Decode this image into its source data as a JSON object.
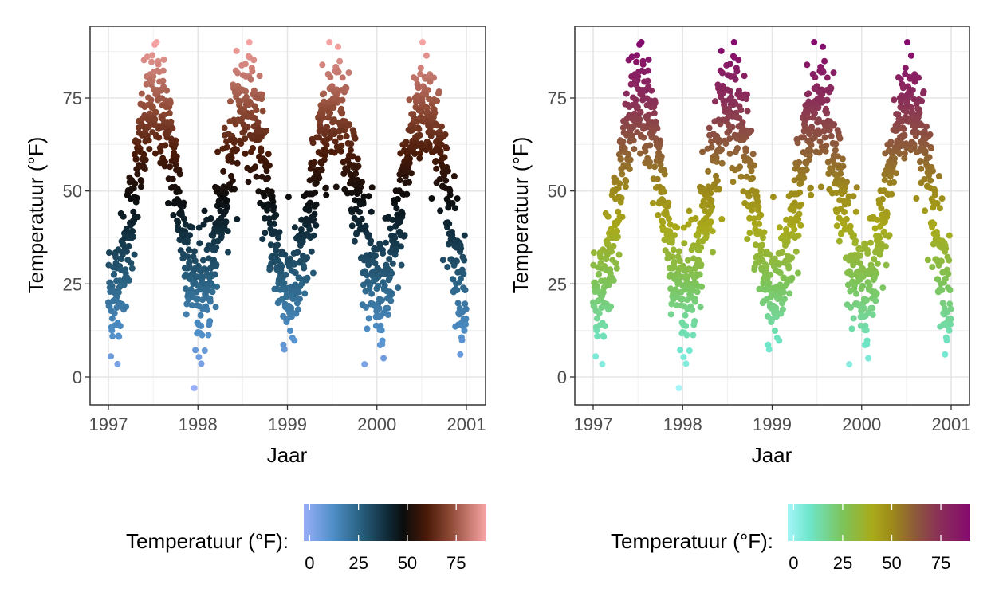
{
  "chart_data": [
    {
      "type": "scatter",
      "panel": "left",
      "xlabel": "Jaar",
      "ylabel": "Temperatuur (°F)",
      "xlim": [
        1996.9,
        2001.2
      ],
      "ylim": [
        -7,
        95
      ],
      "x_ticks": [
        1997,
        1998,
        1999,
        2000,
        2001
      ],
      "x_tick_labels": [
        "1997",
        "1998",
        "1999",
        "2000",
        "2001"
      ],
      "y_ticks": [
        0,
        25,
        50,
        75
      ],
      "y_tick_labels": [
        "0",
        "25",
        "50",
        "75"
      ],
      "grid": true,
      "color_scale": {
        "stops": [
          {
            "value": -3,
            "color": "#98aef8"
          },
          {
            "value": 12,
            "color": "#4f8fc8"
          },
          {
            "value": 25,
            "color": "#2b6485"
          },
          {
            "value": 40,
            "color": "#0f2a38"
          },
          {
            "value": 48,
            "color": "#0b0c0c"
          },
          {
            "value": 60,
            "color": "#4a1a08"
          },
          {
            "value": 72,
            "color": "#8e4a35"
          },
          {
            "value": 90,
            "color": "#f7a3a3"
          }
        ]
      },
      "legend": {
        "title": "Temperatuur (°F):",
        "position": "bottom",
        "range": [
          -3,
          90
        ],
        "ticks": [
          0,
          25,
          50,
          75
        ],
        "tick_labels": [
          "0",
          "25",
          "50",
          "75"
        ]
      }
    },
    {
      "type": "scatter",
      "panel": "right",
      "xlabel": "Jaar",
      "ylabel": "Temperatuur (°F)",
      "xlim": [
        1996.9,
        2001.2
      ],
      "ylim": [
        -7,
        95
      ],
      "x_ticks": [
        1997,
        1998,
        1999,
        2000,
        2001
      ],
      "x_tick_labels": [
        "1997",
        "1998",
        "1999",
        "2000",
        "2001"
      ],
      "y_ticks": [
        0,
        25,
        50,
        75
      ],
      "y_tick_labels": [
        "0",
        "25",
        "50",
        "75"
      ],
      "grid": true,
      "color_scale": {
        "stops": [
          {
            "value": -3,
            "color": "#a4f4f8"
          },
          {
            "value": 8,
            "color": "#6ee6cc"
          },
          {
            "value": 25,
            "color": "#7cc45a"
          },
          {
            "value": 40,
            "color": "#a9aa1a"
          },
          {
            "value": 50,
            "color": "#9d8a1a"
          },
          {
            "value": 62,
            "color": "#8d5a3a"
          },
          {
            "value": 75,
            "color": "#8a2d5a"
          },
          {
            "value": 90,
            "color": "#850a6e"
          }
        ]
      },
      "legend": {
        "title": "Temperatuur (°F):",
        "position": "bottom",
        "range": [
          -3,
          90
        ],
        "ticks": [
          0,
          25,
          50,
          75
        ],
        "tick_labels": [
          "0",
          "25",
          "50",
          "75"
        ]
      }
    }
  ]
}
